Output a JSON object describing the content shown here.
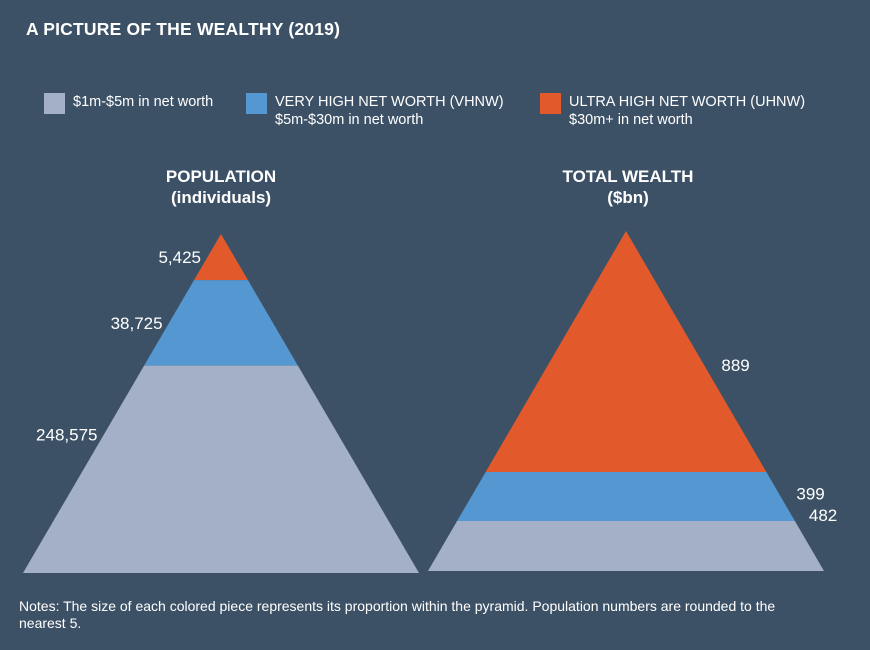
{
  "title": "A PICTURE OF THE WEALTHY (2019)",
  "legend": [
    {
      "lines": [
        "$1m-$5m in net worth"
      ],
      "color": "#a4b0c8"
    },
    {
      "lines": [
        "VERY HIGH NET WORTH (VHNW)",
        "$5m-$30m in net worth"
      ],
      "color": "#5597d0"
    },
    {
      "lines": [
        "ULTRA HIGH NET WORTH (UHNW)",
        "$30m+ in net worth"
      ],
      "color": "#e25a2b"
    }
  ],
  "chart_data": [
    {
      "type": "pyramid",
      "title_lines": [
        "POPULATION",
        "(individuals)"
      ],
      "tiers": [
        {
          "value": 248575,
          "label": "248,575",
          "color": "#a4b0c8"
        },
        {
          "value": 38725,
          "label": "38,725",
          "color": "#5597d0"
        },
        {
          "value": 5425,
          "label": "5,425",
          "color": "#e25a2b"
        }
      ]
    },
    {
      "type": "pyramid",
      "title_lines": [
        "TOTAL WEALTH",
        "($bn)"
      ],
      "tiers": [
        {
          "value": 482,
          "label": "482",
          "color": "#a4b0c8"
        },
        {
          "value": 399,
          "label": "399",
          "color": "#5597d0"
        },
        {
          "value": 889,
          "label": "889",
          "color": "#e25a2b"
        }
      ]
    }
  ],
  "notes": "Notes: The size of each colored piece represents its proportion within the pyramid. Population numbers are rounded to the nearest 5."
}
